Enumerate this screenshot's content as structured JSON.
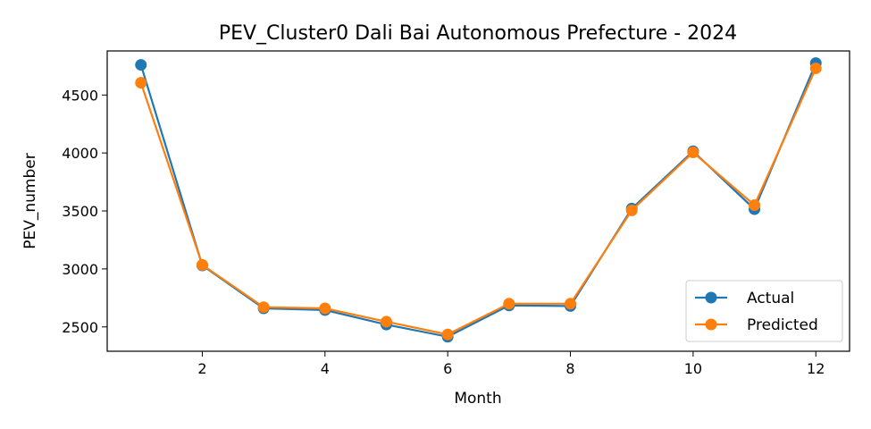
{
  "chart_data": {
    "type": "line",
    "title": "PEV_Cluster0 Dali Bai Autonomous Prefecture - 2024",
    "xlabel": "Month",
    "ylabel": "PEV_number",
    "xlim": [
      0.45,
      12.55
    ],
    "ylim": [
      2290,
      4880
    ],
    "xticks": [
      2,
      4,
      6,
      8,
      10,
      12
    ],
    "yticks": [
      2500,
      3000,
      3500,
      4000,
      4500
    ],
    "grid": false,
    "legend_position": "lower-right",
    "x": [
      1,
      2,
      3,
      4,
      5,
      6,
      7,
      8,
      9,
      10,
      11,
      12
    ],
    "series": [
      {
        "name": "Actual",
        "color": "#1f77b4",
        "values": [
          4760,
          3030,
          2660,
          2645,
          2520,
          2415,
          2685,
          2680,
          3520,
          4015,
          3515,
          4775
        ]
      },
      {
        "name": "Predicted",
        "color": "#ff7f0e",
        "values": [
          4605,
          3035,
          2670,
          2660,
          2545,
          2435,
          2700,
          2700,
          3505,
          4005,
          3550,
          4730
        ]
      }
    ]
  }
}
